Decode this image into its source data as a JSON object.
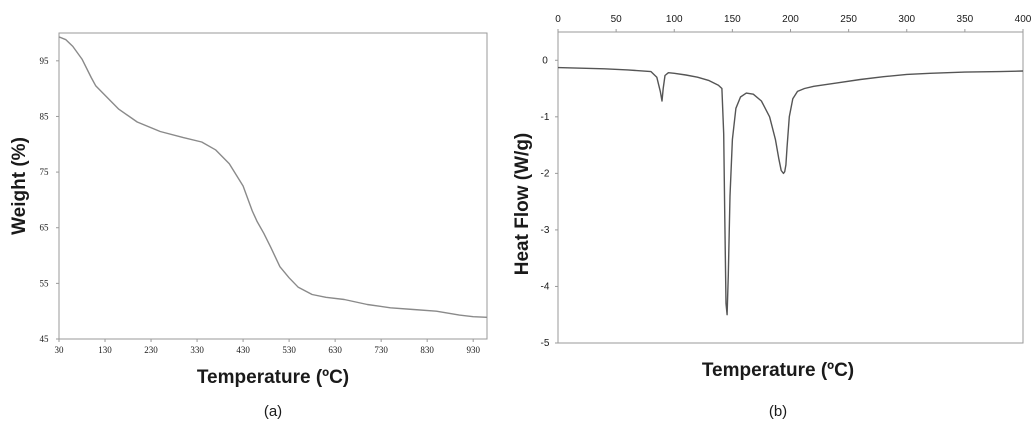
{
  "chart_data": [
    {
      "type": "line",
      "panel_label": "(a)",
      "xlabel": "Temperature (ºC)",
      "ylabel": "Weight (%)",
      "xlim": [
        30,
        960
      ],
      "ylim": [
        45,
        100
      ],
      "x_ticks": [
        30,
        130,
        230,
        330,
        430,
        530,
        630,
        730,
        830,
        930
      ],
      "y_ticks": [
        45,
        55,
        65,
        75,
        85,
        95
      ],
      "grid": false,
      "series": [
        {
          "color": "#8a8a8a",
          "x": [
            30,
            45,
            60,
            80,
            100,
            110,
            130,
            160,
            200,
            250,
            300,
            340,
            370,
            400,
            430,
            450,
            460,
            475,
            490,
            510,
            530,
            550,
            580,
            610,
            650,
            700,
            750,
            800,
            850,
            900,
            930,
            960
          ],
          "y": [
            99.3,
            98.8,
            97.6,
            95.3,
            92.0,
            90.5,
            88.8,
            86.3,
            84.0,
            82.3,
            81.2,
            80.4,
            79.0,
            76.5,
            72.5,
            68.0,
            66.2,
            64.0,
            61.5,
            58.0,
            56.0,
            54.3,
            53.0,
            52.5,
            52.1,
            51.2,
            50.6,
            50.3,
            50.0,
            49.3,
            49.0,
            48.9
          ]
        }
      ]
    },
    {
      "type": "line",
      "panel_label": "(b)",
      "xlabel": "Temperature (ºC)",
      "ylabel": "Heat Flow (W/g)",
      "xlim": [
        0,
        400
      ],
      "ylim": [
        -5,
        0.5
      ],
      "x_ticks": [
        0,
        50,
        100,
        150,
        200,
        250,
        300,
        350,
        400
      ],
      "y_ticks": [
        0,
        -1,
        -2,
        -3,
        -4,
        -5
      ],
      "x_axis_position": "top",
      "grid": false,
      "series": [
        {
          "color": "#555555",
          "x": [
            0,
            20,
            40,
            60,
            80,
            85,
            88,
            89.5,
            90.5,
            92,
            95,
            100,
            110,
            120,
            130,
            138,
            141,
            142.5,
            143.5,
            144.5,
            145.5,
            146.5,
            148,
            150,
            153,
            157,
            162,
            168,
            175,
            182,
            187,
            190,
            192,
            194,
            195,
            196,
            197,
            199,
            202,
            206,
            212,
            220,
            240,
            260,
            280,
            300,
            320,
            350,
            380,
            400
          ],
          "y": [
            -0.13,
            -0.14,
            -0.15,
            -0.17,
            -0.2,
            -0.3,
            -0.55,
            -0.72,
            -0.5,
            -0.27,
            -0.22,
            -0.23,
            -0.26,
            -0.3,
            -0.36,
            -0.44,
            -0.5,
            -1.3,
            -2.8,
            -4.3,
            -4.5,
            -3.8,
            -2.4,
            -1.4,
            -0.85,
            -0.65,
            -0.58,
            -0.6,
            -0.72,
            -1.0,
            -1.4,
            -1.75,
            -1.95,
            -2.0,
            -1.97,
            -1.85,
            -1.55,
            -1.0,
            -0.68,
            -0.55,
            -0.5,
            -0.46,
            -0.4,
            -0.34,
            -0.29,
            -0.25,
            -0.23,
            -0.21,
            -0.2,
            -0.19
          ]
        }
      ]
    }
  ]
}
